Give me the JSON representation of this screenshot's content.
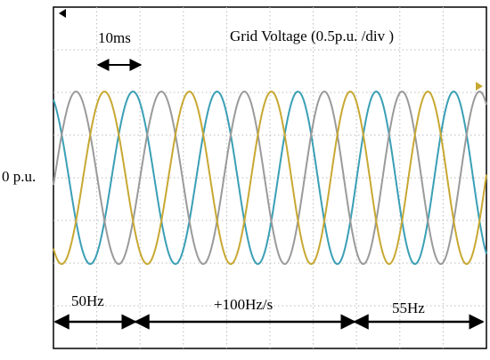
{
  "title": "Grid Voltage (0.5p.u. /div )",
  "time_scale": "10ms",
  "zero_label": "0 p.u.",
  "segments": [
    "50Hz",
    "+100Hz/s",
    "55Hz"
  ]
}
